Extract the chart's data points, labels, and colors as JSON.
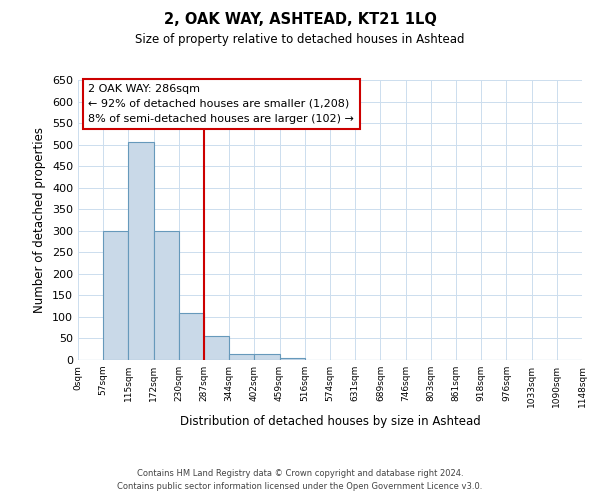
{
  "title": "2, OAK WAY, ASHTEAD, KT21 1LQ",
  "subtitle": "Size of property relative to detached houses in Ashtead",
  "xlabel": "Distribution of detached houses by size in Ashtead",
  "ylabel": "Number of detached properties",
  "bin_edges": [
    0,
    57,
    115,
    172,
    230,
    287,
    344,
    402,
    459,
    516,
    574,
    631,
    689,
    746,
    803,
    861,
    918,
    976,
    1033,
    1090,
    1148
  ],
  "bin_labels": [
    "0sqm",
    "57sqm",
    "115sqm",
    "172sqm",
    "230sqm",
    "287sqm",
    "344sqm",
    "402sqm",
    "459sqm",
    "516sqm",
    "574sqm",
    "631sqm",
    "689sqm",
    "746sqm",
    "803sqm",
    "861sqm",
    "918sqm",
    "976sqm",
    "1033sqm",
    "1090sqm",
    "1148sqm"
  ],
  "bar_heights": [
    0,
    300,
    505,
    300,
    110,
    55,
    15,
    15,
    5,
    0,
    0,
    0,
    0,
    0,
    0,
    0,
    0,
    0,
    0,
    0
  ],
  "bar_color": "#c9d9e8",
  "bar_edge_color": "#6699bb",
  "ylim": [
    0,
    650
  ],
  "yticks": [
    0,
    50,
    100,
    150,
    200,
    250,
    300,
    350,
    400,
    450,
    500,
    550,
    600,
    650
  ],
  "vline_x": 287,
  "vline_color": "#cc0000",
  "annotation_title": "2 OAK WAY: 286sqm",
  "annotation_line1": "← 92% of detached houses are smaller (1,208)",
  "annotation_line2": "8% of semi-detached houses are larger (102) →",
  "annotation_box_color": "#cc0000",
  "footnote_line1": "Contains HM Land Registry data © Crown copyright and database right 2024.",
  "footnote_line2": "Contains public sector information licensed under the Open Government Licence v3.0.",
  "background_color": "#ffffff",
  "grid_color": "#ccddee"
}
